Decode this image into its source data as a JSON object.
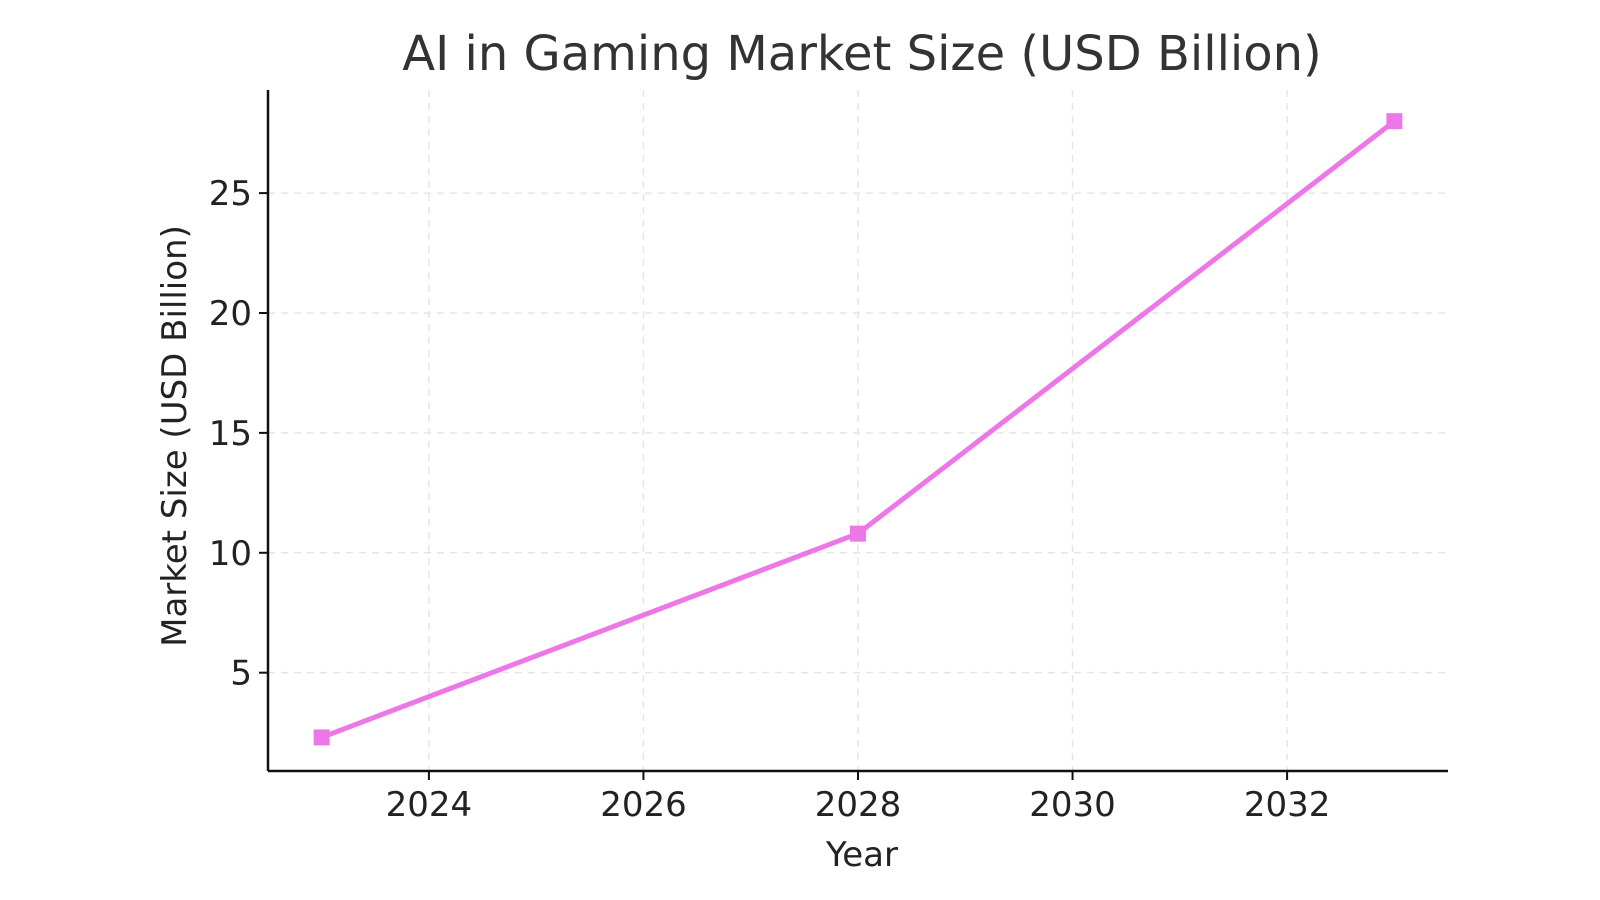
{
  "chart_data": {
    "type": "line",
    "title": "AI in Gaming Market Size (USD Billion)",
    "xlabel": "Year",
    "ylabel": "Market Size (USD Billion)",
    "xlim": [
      2022.5,
      2033.5
    ],
    "ylim": [
      0.9,
      29.3
    ],
    "x_ticks": [
      2024,
      2026,
      2028,
      2030,
      2032
    ],
    "y_ticks": [
      5,
      10,
      15,
      20,
      25
    ],
    "grid": true,
    "legend": "none",
    "series": [
      {
        "color": "#EE77E8",
        "marker": "square",
        "points": [
          {
            "x": 2023,
            "y": 2.3
          },
          {
            "x": 2028,
            "y": 10.8
          },
          {
            "x": 2033,
            "y": 28.0
          }
        ]
      }
    ]
  }
}
